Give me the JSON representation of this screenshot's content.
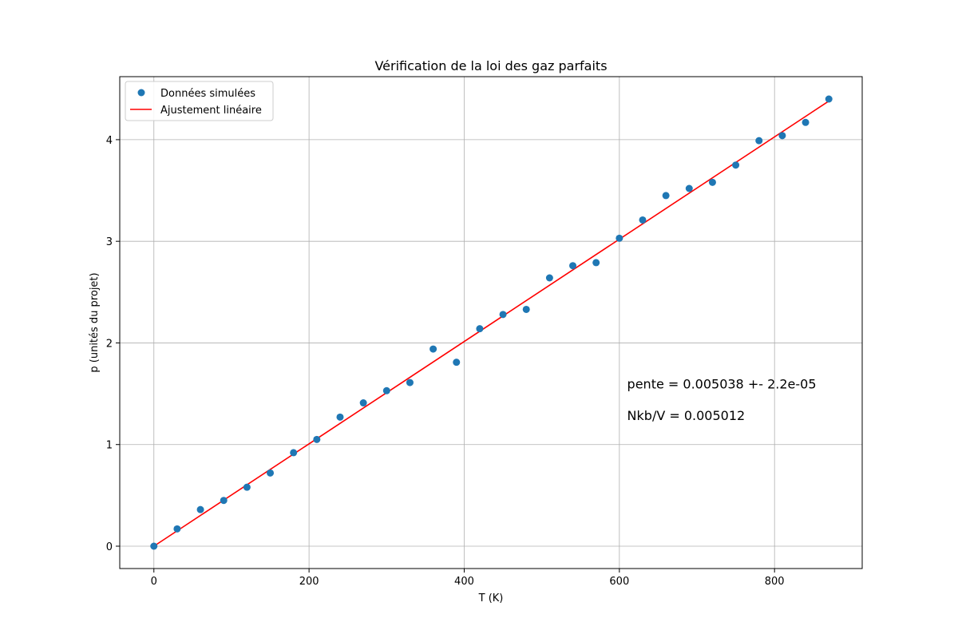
{
  "chart_data": {
    "type": "scatter",
    "title": "Vérification de la loi des gaz parfaits",
    "xlabel": "T (K)",
    "ylabel": "p (unités du projet)",
    "xlim": [
      -44,
      913
    ],
    "ylim": [
      -0.22,
      4.62
    ],
    "xticks": [
      0,
      200,
      400,
      600,
      800
    ],
    "yticks": [
      0,
      1,
      2,
      3,
      4
    ],
    "grid": true,
    "legend_position": "top-left",
    "series": [
      {
        "name": "Données simulées",
        "kind": "scatter",
        "color": "#1f77b4",
        "x": [
          0,
          30,
          60,
          90,
          120,
          150,
          180,
          210,
          240,
          270,
          300,
          330,
          360,
          390,
          420,
          450,
          480,
          510,
          540,
          570,
          600,
          630,
          660,
          690,
          720,
          750,
          780,
          810,
          840,
          870
        ],
        "y": [
          0.0,
          0.17,
          0.36,
          0.45,
          0.58,
          0.72,
          0.92,
          1.05,
          1.27,
          1.41,
          1.53,
          1.61,
          1.94,
          1.81,
          2.14,
          2.28,
          2.33,
          2.64,
          2.76,
          2.79,
          3.03,
          3.21,
          3.45,
          3.52,
          3.58,
          3.75,
          3.99,
          4.04,
          4.17,
          4.4
        ]
      },
      {
        "name": "Ajustement linéaire",
        "kind": "line",
        "color": "#ff0000",
        "x": [
          0,
          870
        ],
        "y": [
          0.0,
          4.38
        ]
      }
    ],
    "annotations": [
      {
        "text": "pente = 0.005038 +- 2.2e-05",
        "x": 610,
        "y": 1.6
      },
      {
        "text": "Nkb/V = 0.005012",
        "x": 610,
        "y": 1.29
      }
    ]
  }
}
